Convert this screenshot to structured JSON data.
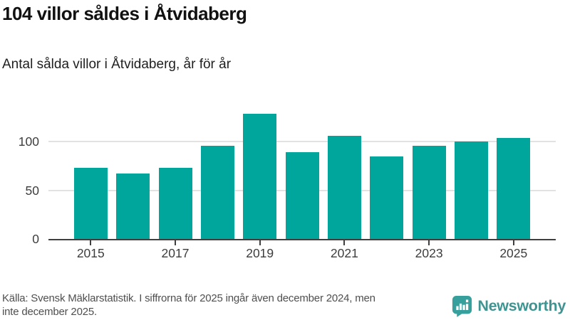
{
  "chart_data": {
    "type": "bar",
    "title": "104 villor såldes i Åtvidaberg",
    "subtitle": "Antal sålda villor i Åtvidaberg, år för år",
    "categories": [
      "2015",
      "2016",
      "2017",
      "2018",
      "2019",
      "2020",
      "2021",
      "2022",
      "2023",
      "2024",
      "2025"
    ],
    "values": [
      73,
      67,
      73,
      96,
      129,
      89,
      106,
      85,
      96,
      100,
      104
    ],
    "xlabel": "",
    "ylabel": "",
    "ylim": [
      0,
      136
    ],
    "yticks": [
      0,
      50,
      100
    ],
    "xtick_labels": [
      "2015",
      "2017",
      "2019",
      "2021",
      "2023",
      "2025"
    ],
    "grid": "horizontal",
    "legend": "none"
  },
  "footer": {
    "lines": [
      "Källa: Svensk Mäklarstatistik. I siffrorna för 2025 ingår även december 2024, men",
      "inte december 2025."
    ]
  },
  "logo": {
    "text": "Newsworthy",
    "icon": "bar-chart-speech-bubble-icon"
  },
  "colors": {
    "bar": "#00a69c",
    "grid_line": "#e2e2e2",
    "axis_line": "#3f3f3f",
    "axis_text": "#3d3d3d",
    "title_text": "#111111",
    "footer_text": "#4f4f4f",
    "logo_icon": "#38a09c",
    "logo_text": "#3f9390"
  }
}
